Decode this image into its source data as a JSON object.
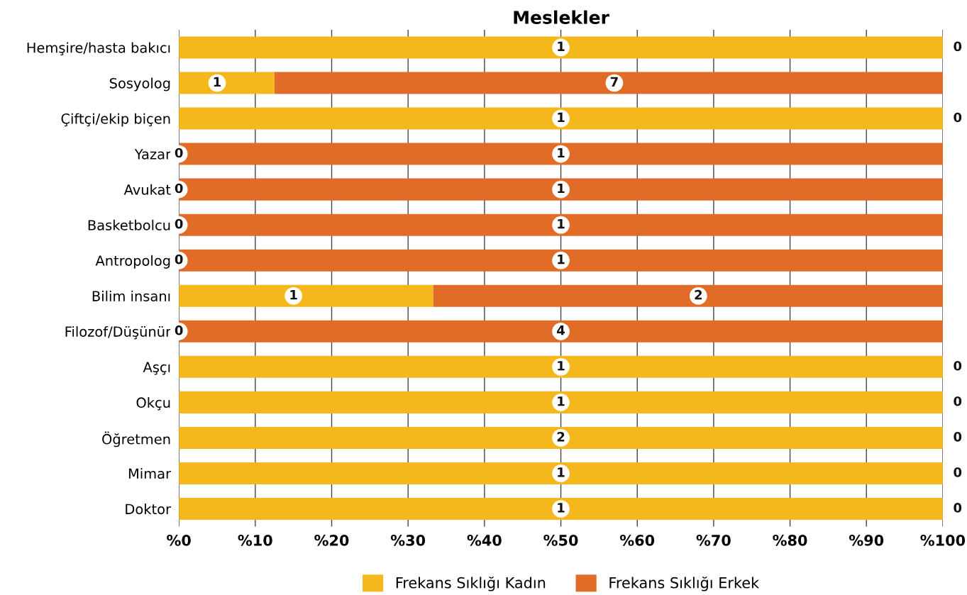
{
  "chart_data": {
    "type": "bar",
    "orientation": "horizontal",
    "stacked": true,
    "title": "Meslekler",
    "categories": [
      "Hemşire/hasta bakıcı",
      "Sosyolog",
      "Çiftçi/ekip biçen",
      "Yazar",
      "Avukat",
      "Basketbolcu",
      "Antropolog",
      "Bilim insanı",
      "Filozof/Düşünür",
      "Aşçı",
      "Okçu",
      "Öğretmen",
      "Mimar",
      "Doktor"
    ],
    "series": [
      {
        "name": "Frekans Sıklığı Kadın",
        "color": "#f5b81c",
        "values": [
          100,
          12.5,
          100,
          0,
          0,
          0,
          0,
          33.3,
          0,
          100,
          100,
          100,
          100,
          100
        ]
      },
      {
        "name": "Frekans Sıklığı Erkek",
        "color": "#e06c27",
        "values": [
          0,
          87.5,
          0,
          100,
          100,
          100,
          100,
          66.7,
          100,
          0,
          0,
          0,
          0,
          0
        ]
      }
    ],
    "annotations": [
      {
        "text": "1",
        "x": 50,
        "y": "Hemşire/hasta bakıcı"
      },
      {
        "text": "0",
        "x": 100,
        "y": "Hemşire/hasta bakıcı"
      },
      {
        "text": "1",
        "x": 5,
        "y": "Sosyolog"
      },
      {
        "text": "7",
        "x": 57,
        "y": "Sosyolog"
      },
      {
        "text": "1",
        "x": 50,
        "y": "Çiftçi/ekip biçen"
      },
      {
        "text": "0",
        "x": 100,
        "y": "Çiftçi/ekip biçen"
      },
      {
        "text": "0",
        "x": 0,
        "y": "Yazar"
      },
      {
        "text": "1",
        "x": 50,
        "y": "Yazar"
      },
      {
        "text": "0",
        "x": 0,
        "y": "Avukat"
      },
      {
        "text": "1",
        "x": 50,
        "y": "Avukat"
      },
      {
        "text": "0",
        "x": 0,
        "y": "Basketbolcu"
      },
      {
        "text": "1",
        "x": 50,
        "y": "Basketbolcu"
      },
      {
        "text": "0",
        "x": 0,
        "y": "Antropolog"
      },
      {
        "text": "1",
        "x": 50,
        "y": "Antropolog"
      },
      {
        "text": "1",
        "x": 15,
        "y": "Bilim insanı"
      },
      {
        "text": "2",
        "x": 68,
        "y": "Bilim insanı"
      },
      {
        "text": "0",
        "x": 0,
        "y": "Filozof/Düşünür"
      },
      {
        "text": "4",
        "x": 50,
        "y": "Filozof/Düşünür"
      },
      {
        "text": "1",
        "x": 50,
        "y": "Aşçı"
      },
      {
        "text": "0",
        "x": 100,
        "y": "Aşçı"
      },
      {
        "text": "1",
        "x": 50,
        "y": "Okçu"
      },
      {
        "text": "0",
        "x": 100,
        "y": "Okçu"
      },
      {
        "text": "2",
        "x": 50,
        "y": "Öğretmen"
      },
      {
        "text": "0",
        "x": 100,
        "y": "Öğretmen"
      },
      {
        "text": "1",
        "x": 50,
        "y": "Mimar"
      },
      {
        "text": "0",
        "x": 100,
        "y": "Mimar"
      },
      {
        "text": "1",
        "x": 50,
        "y": "Doktor"
      },
      {
        "text": "0",
        "x": 100,
        "y": "Doktor"
      }
    ],
    "xlim": [
      0,
      100
    ],
    "xticks": [
      {
        "value": 0,
        "label": "%0"
      },
      {
        "value": 10,
        "label": "%10"
      },
      {
        "value": 20,
        "label": "%20"
      },
      {
        "value": 30,
        "label": "%30"
      },
      {
        "value": 40,
        "label": "%40"
      },
      {
        "value": 50,
        "label": "%50"
      },
      {
        "value": 60,
        "label": "%60"
      },
      {
        "value": 70,
        "label": "%70"
      },
      {
        "value": 80,
        "label": "%80"
      },
      {
        "value": 90,
        "label": "%90"
      },
      {
        "value": 100,
        "label": "%100"
      }
    ],
    "grid": "x",
    "legend": "bottom"
  }
}
